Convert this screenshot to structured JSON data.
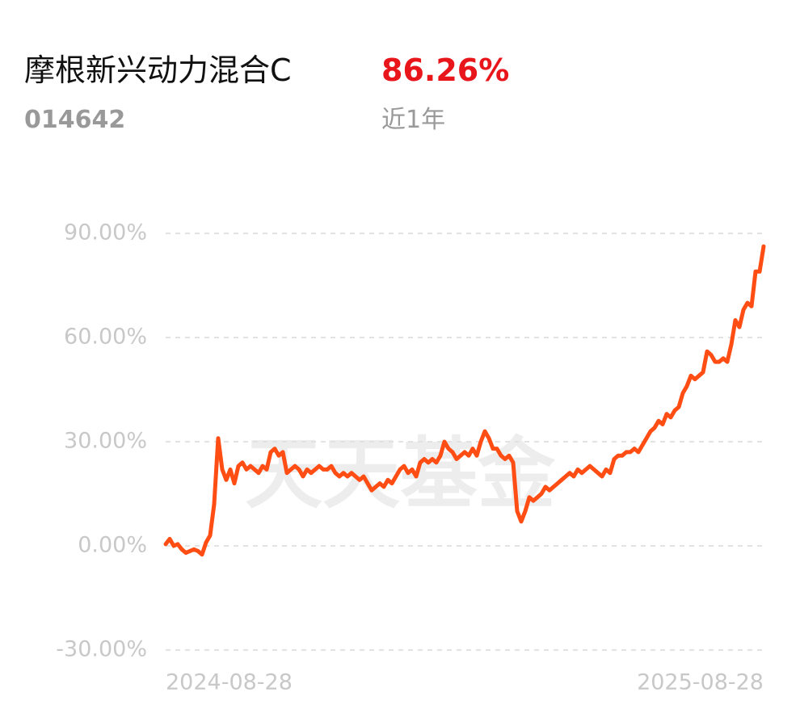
{
  "header": {
    "title": "摩根新兴动力混合C",
    "return": "86.26%",
    "code": "014642",
    "period": "近1年"
  },
  "watermark": "天天基金",
  "chart_data": {
    "type": "line",
    "categories": [
      "2024-08-28",
      null,
      null,
      null,
      null,
      null,
      null,
      null,
      null,
      null,
      null,
      null,
      null,
      null,
      null,
      null,
      null,
      null,
      null,
      null,
      null,
      null,
      null,
      null,
      null,
      null,
      null,
      null,
      null,
      null,
      null,
      null,
      null,
      null,
      null,
      null,
      null,
      null,
      null,
      null,
      null,
      null,
      null,
      null,
      null,
      null,
      null,
      null,
      null,
      null,
      null,
      null,
      null,
      null,
      null,
      null,
      null,
      null,
      null,
      null,
      null,
      null,
      null,
      null,
      null,
      null,
      null,
      null,
      null,
      null,
      null,
      null,
      null,
      null,
      null,
      null,
      null,
      null,
      null,
      null,
      null,
      null,
      null,
      null,
      null,
      null,
      null,
      null,
      null,
      null,
      null,
      null,
      null,
      null,
      null,
      null,
      null,
      null,
      null,
      null,
      null,
      null,
      null,
      null,
      null,
      null,
      null,
      null,
      null,
      null,
      null,
      null,
      null,
      null,
      null,
      null,
      null,
      null,
      null,
      null,
      null,
      null,
      null,
      null,
      null,
      null,
      null,
      null,
      null,
      null,
      null,
      null,
      null,
      null,
      null,
      null,
      null,
      null,
      null,
      null,
      null,
      null,
      null,
      null,
      null,
      null,
      null,
      null,
      "2025-08-28"
    ],
    "series": [
      {
        "color": "#ff4d14",
        "values": [
          0.5,
          2,
          0,
          0.5,
          -1,
          -2,
          -1.5,
          -1,
          -1.5,
          -2.5,
          1,
          3,
          12,
          31,
          22,
          19,
          22,
          18,
          23,
          24,
          22,
          23,
          22,
          21,
          23,
          22,
          27,
          28,
          26,
          27,
          21,
          22,
          23,
          22,
          20,
          22,
          21,
          22,
          23,
          22,
          22,
          23,
          21,
          20,
          21,
          20,
          21,
          20,
          19,
          20,
          18,
          16,
          17,
          18,
          17,
          19,
          18,
          20,
          22,
          23,
          21,
          22,
          20,
          24,
          25,
          24,
          25,
          24,
          26,
          30,
          28,
          27,
          25,
          26,
          27,
          26,
          28,
          26,
          30,
          33,
          31,
          28,
          28,
          26,
          25,
          26,
          24,
          10,
          7,
          10,
          14,
          13,
          14,
          15,
          17,
          16,
          17,
          18,
          19,
          20,
          21,
          20,
          22,
          21,
          22,
          23,
          22,
          21,
          20,
          22,
          21,
          25,
          26,
          26,
          27,
          27,
          28,
          27,
          29,
          31,
          33,
          34,
          36,
          35,
          38,
          37,
          39,
          40,
          44,
          46,
          49,
          48,
          49,
          50,
          56,
          55,
          53,
          53,
          54,
          53,
          58,
          65,
          63,
          68,
          70,
          69,
          79,
          79,
          86.26
        ]
      }
    ],
    "ylim": [
      -30,
      90
    ],
    "yticks": [
      {
        "value": -30,
        "label": "-30.00%"
      },
      {
        "value": 0,
        "label": "0.00%"
      },
      {
        "value": 30,
        "label": "30.00%"
      },
      {
        "value": 60,
        "label": "60.00%"
      },
      {
        "value": 90,
        "label": "90.00%"
      }
    ],
    "grid": true
  }
}
